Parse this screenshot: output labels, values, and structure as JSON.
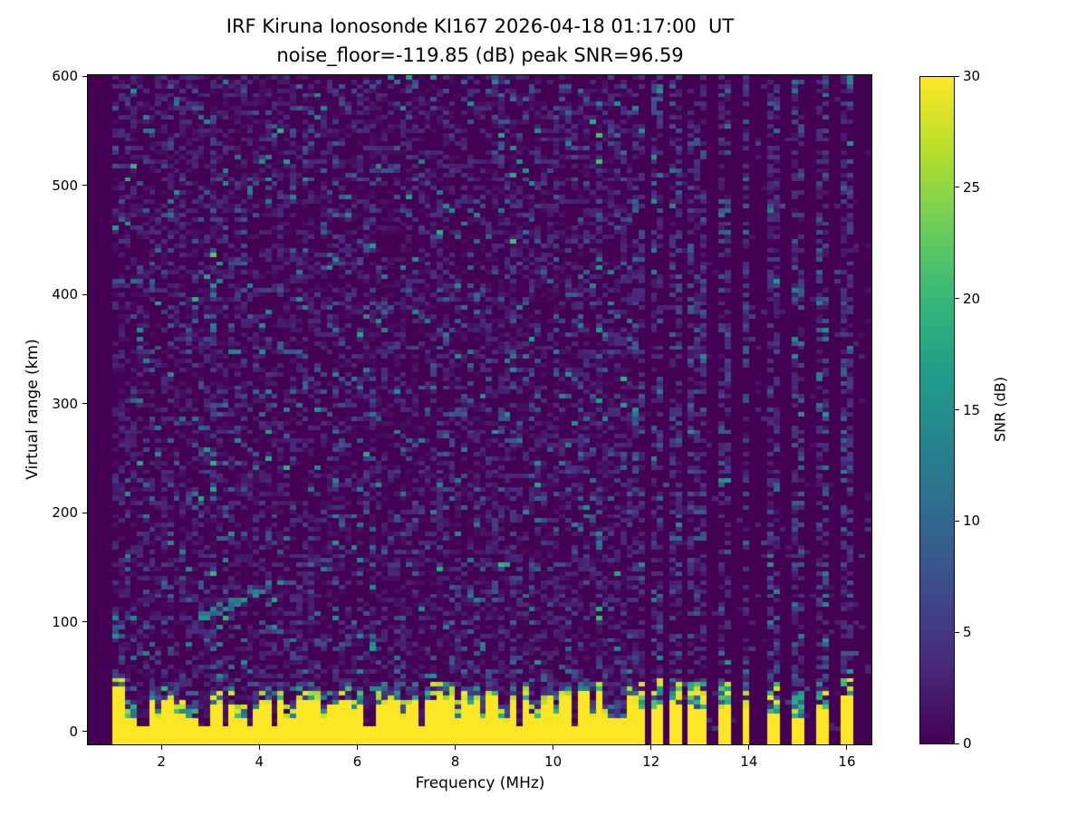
{
  "figure": {
    "title_line1": "IRF Kiruna Ionosonde KI167 2026-04-18 01:17:00  UT",
    "title_line2": "noise_floor=-119.85 (dB) peak SNR=96.59",
    "background": "#ffffff",
    "axis_color": "#000000",
    "station": "IRF Kiruna Ionosonde KI167",
    "timestamp_ut": "2026-04-18 01:17:00",
    "noise_floor_db": -119.85,
    "peak_snr_db": 96.59
  },
  "chart_data": {
    "type": "heatmap",
    "title": "IRF Kiruna Ionosonde KI167 2026-04-18 01:17:00  UT",
    "subtitle": "noise_floor=-119.85 (dB) peak SNR=96.59",
    "xlabel": "Frequency (MHz)",
    "ylabel": "Virtual range (km)",
    "xlim": [
      0.5,
      16.5
    ],
    "ylim": [
      -12,
      601
    ],
    "xticks": [
      2,
      4,
      6,
      8,
      10,
      12,
      14,
      16
    ],
    "yticks": [
      0,
      100,
      200,
      300,
      400,
      500,
      600
    ],
    "grid": false,
    "colorbar": {
      "label": "SNR (dB)",
      "min": 0,
      "max": 30,
      "ticks": [
        0,
        5,
        10,
        15,
        20,
        25,
        30
      ]
    },
    "colormap": {
      "name": "viridis",
      "stops": [
        {
          "t": 0.0,
          "hex": "#440154"
        },
        {
          "t": 0.111,
          "hex": "#482878"
        },
        {
          "t": 0.222,
          "hex": "#3e4989"
        },
        {
          "t": 0.333,
          "hex": "#31688e"
        },
        {
          "t": 0.444,
          "hex": "#26828e"
        },
        {
          "t": 0.556,
          "hex": "#1f9e89"
        },
        {
          "t": 0.667,
          "hex": "#35b779"
        },
        {
          "t": 0.778,
          "hex": "#6ece58"
        },
        {
          "t": 0.889,
          "hex": "#b5de2b"
        },
        {
          "t": 1.0,
          "hex": "#fde725"
        }
      ]
    },
    "features": {
      "data_freq_range_mhz": [
        1.0,
        16.5
      ],
      "ground_echo_band": {
        "freq_min_mhz": 1.0,
        "freq_max_mhz": 11.62,
        "top_km_typical": 30,
        "top_km_low_freq": 42,
        "transition_depth_km": 14,
        "snr_db": 30
      },
      "band_notches": [
        {
          "f": 1.35,
          "w": 0.1,
          "top": 14,
          "deep": false
        },
        {
          "f": 1.63,
          "w": 0.1,
          "top": 6,
          "deep": true
        },
        {
          "f": 1.92,
          "w": 0.08,
          "top": 13,
          "deep": false
        },
        {
          "f": 2.38,
          "w": 0.08,
          "top": 15,
          "deep": false
        },
        {
          "f": 2.62,
          "w": 0.08,
          "top": 12,
          "deep": false
        },
        {
          "f": 2.9,
          "w": 0.1,
          "top": 5,
          "deep": true
        },
        {
          "f": 3.33,
          "w": 0.08,
          "top": 6,
          "deep": true
        },
        {
          "f": 3.62,
          "w": 0.08,
          "top": 12,
          "deep": false
        },
        {
          "f": 3.76,
          "w": 0.08,
          "top": 5,
          "deep": true
        },
        {
          "f": 4.3,
          "w": 0.1,
          "top": 6,
          "deep": true
        },
        {
          "f": 4.62,
          "w": 0.08,
          "top": 14,
          "deep": false
        },
        {
          "f": 5.28,
          "w": 0.08,
          "top": 12,
          "deep": false
        },
        {
          "f": 5.93,
          "w": 0.08,
          "top": 15,
          "deep": false
        },
        {
          "f": 6.27,
          "w": 0.12,
          "top": 4,
          "deep": true
        },
        {
          "f": 6.92,
          "w": 0.08,
          "top": 14,
          "deep": false
        },
        {
          "f": 7.3,
          "w": 0.1,
          "top": 6,
          "deep": true
        },
        {
          "f": 8.02,
          "w": 0.08,
          "top": 14,
          "deep": false
        },
        {
          "f": 8.55,
          "w": 0.08,
          "top": 13,
          "deep": false
        },
        {
          "f": 9.0,
          "w": 0.1,
          "top": 10,
          "deep": false
        },
        {
          "f": 9.33,
          "w": 0.08,
          "top": 8,
          "deep": true
        },
        {
          "f": 9.62,
          "w": 0.08,
          "top": 14,
          "deep": false
        },
        {
          "f": 10.02,
          "w": 0.08,
          "top": 12,
          "deep": false
        },
        {
          "f": 10.45,
          "w": 0.1,
          "top": 7,
          "deep": true
        },
        {
          "f": 10.78,
          "w": 0.08,
          "top": 13,
          "deep": false
        },
        {
          "f": 11.12,
          "w": 0.08,
          "top": 12,
          "deep": false
        },
        {
          "f": 11.38,
          "w": 0.08,
          "top": 13,
          "deep": false
        }
      ],
      "rfi_stripes_dense_mhz": [
        11.66,
        11.84,
        12.03,
        12.22,
        12.41,
        12.6,
        12.79,
        12.98
      ],
      "rfi_stripes_sparse_mhz": [
        13.48,
        13.97,
        14.49,
        15.0,
        15.5,
        16.0
      ],
      "rfi_stripe_halfwidth_mhz": 0.085,
      "tall_stripe_mhz": 16.0,
      "echo_trace": {
        "freq_start_mhz": 2.8,
        "freq_end_mhz": 4.5,
        "range_start_km": 104,
        "range_end_km": 138
      },
      "boosted_noise_columns_mhz": [
        3.05,
        6.28,
        9.2,
        10.9
      ]
    }
  }
}
